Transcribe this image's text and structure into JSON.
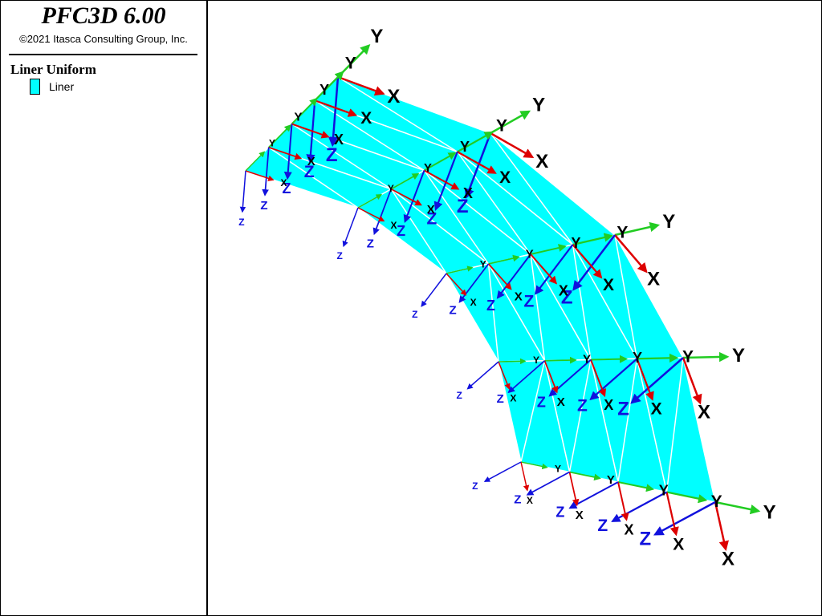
{
  "header": {
    "title": "PFC3D 6.00",
    "copyright": "©2021 Itasca Consulting Group, Inc."
  },
  "legend": {
    "title": "Liner Uniform",
    "items": [
      {
        "label": "Liner"
      }
    ]
  },
  "axis_labels": {
    "x": "X",
    "y": "Y",
    "z": "Z"
  }
}
